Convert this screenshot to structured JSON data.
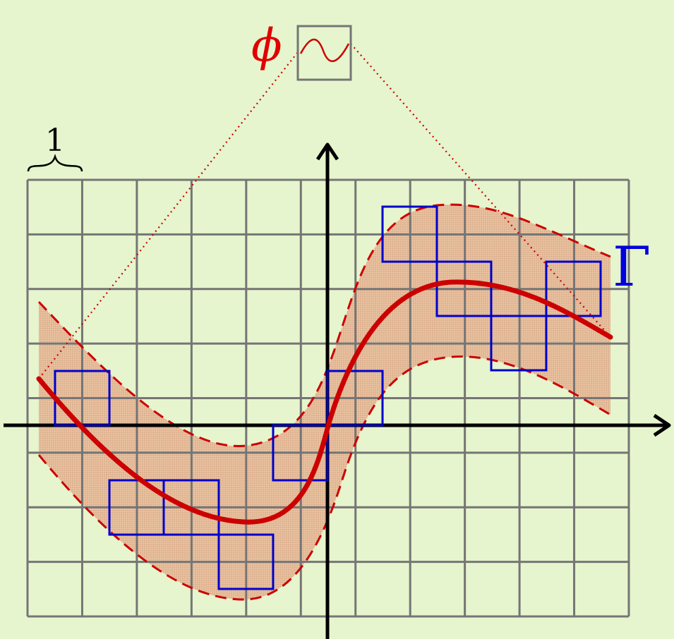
{
  "labels": {
    "scale": "1",
    "phi": "ϕ",
    "gamma": "Γ"
  },
  "colors": {
    "background": "#e6f5cd",
    "grid": "#757575",
    "axes": "#000000",
    "curve": "#cc0000",
    "band": "#e5b590",
    "cover_boxes": "#0000cc",
    "phi": "#e00000",
    "gamma": "#0000dd",
    "inset_box": "#757575"
  },
  "icons": {
    "phi_inset": "sine-wave-icon",
    "scale_marker": "curly-brace-icon"
  }
}
